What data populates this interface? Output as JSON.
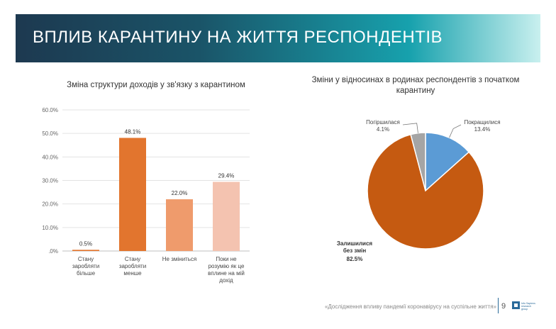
{
  "header": {
    "title": "ВПЛИВ КАРАНТИНУ НА ЖИТТЯ РЕСПОНДЕНТІВ"
  },
  "chart_data": [
    {
      "type": "bar",
      "title": "Зміна структури доходів у зв'язку з карантином",
      "categories": [
        [
          "Стану",
          "заробляти",
          "більше"
        ],
        [
          "Стану",
          "заробляти",
          "менше"
        ],
        [
          "Не зміниться"
        ],
        [
          "Поки не",
          "розумію як це",
          "вплине на мій",
          "дохід"
        ]
      ],
      "values": [
        0.5,
        48.1,
        22.0,
        29.4
      ],
      "value_labels": [
        "0.5%",
        "48.1%",
        "22.0%",
        "29.4%"
      ],
      "colors": [
        "#e2752e",
        "#e2752e",
        "#ef9b6c",
        "#f4c3b0"
      ],
      "ylim": [
        0,
        60
      ],
      "yticks": [
        0,
        10,
        20,
        30,
        40,
        50,
        60
      ],
      "ytick_labels": [
        ".0%",
        "10.0%",
        "20.0%",
        "30.0%",
        "40.0%",
        "50.0%",
        "60.0%"
      ],
      "grid": true
    },
    {
      "type": "pie",
      "title": "Зміни у відносинах в родинах респондентів з початком карантину",
      "slices": [
        {
          "label": "Покращилися",
          "value": 13.4,
          "value_label": "13.4%",
          "color": "#5b9bd5"
        },
        {
          "label": "Залишилися без змін",
          "label_lines": [
            "Залишилися",
            "без змін"
          ],
          "value": 82.5,
          "value_label": "82.5%",
          "color": "#c55a11"
        },
        {
          "label": "Погіршилася",
          "value": 4.1,
          "value_label": "4.1%",
          "color": "#a5a5a5"
        }
      ]
    }
  ],
  "footer": {
    "text": "«Дослідження впливу пандемії коронавірусу на суспільне життя»",
    "page": "9",
    "logo_text": [
      "Info Sapiens",
      "research",
      "group"
    ]
  }
}
